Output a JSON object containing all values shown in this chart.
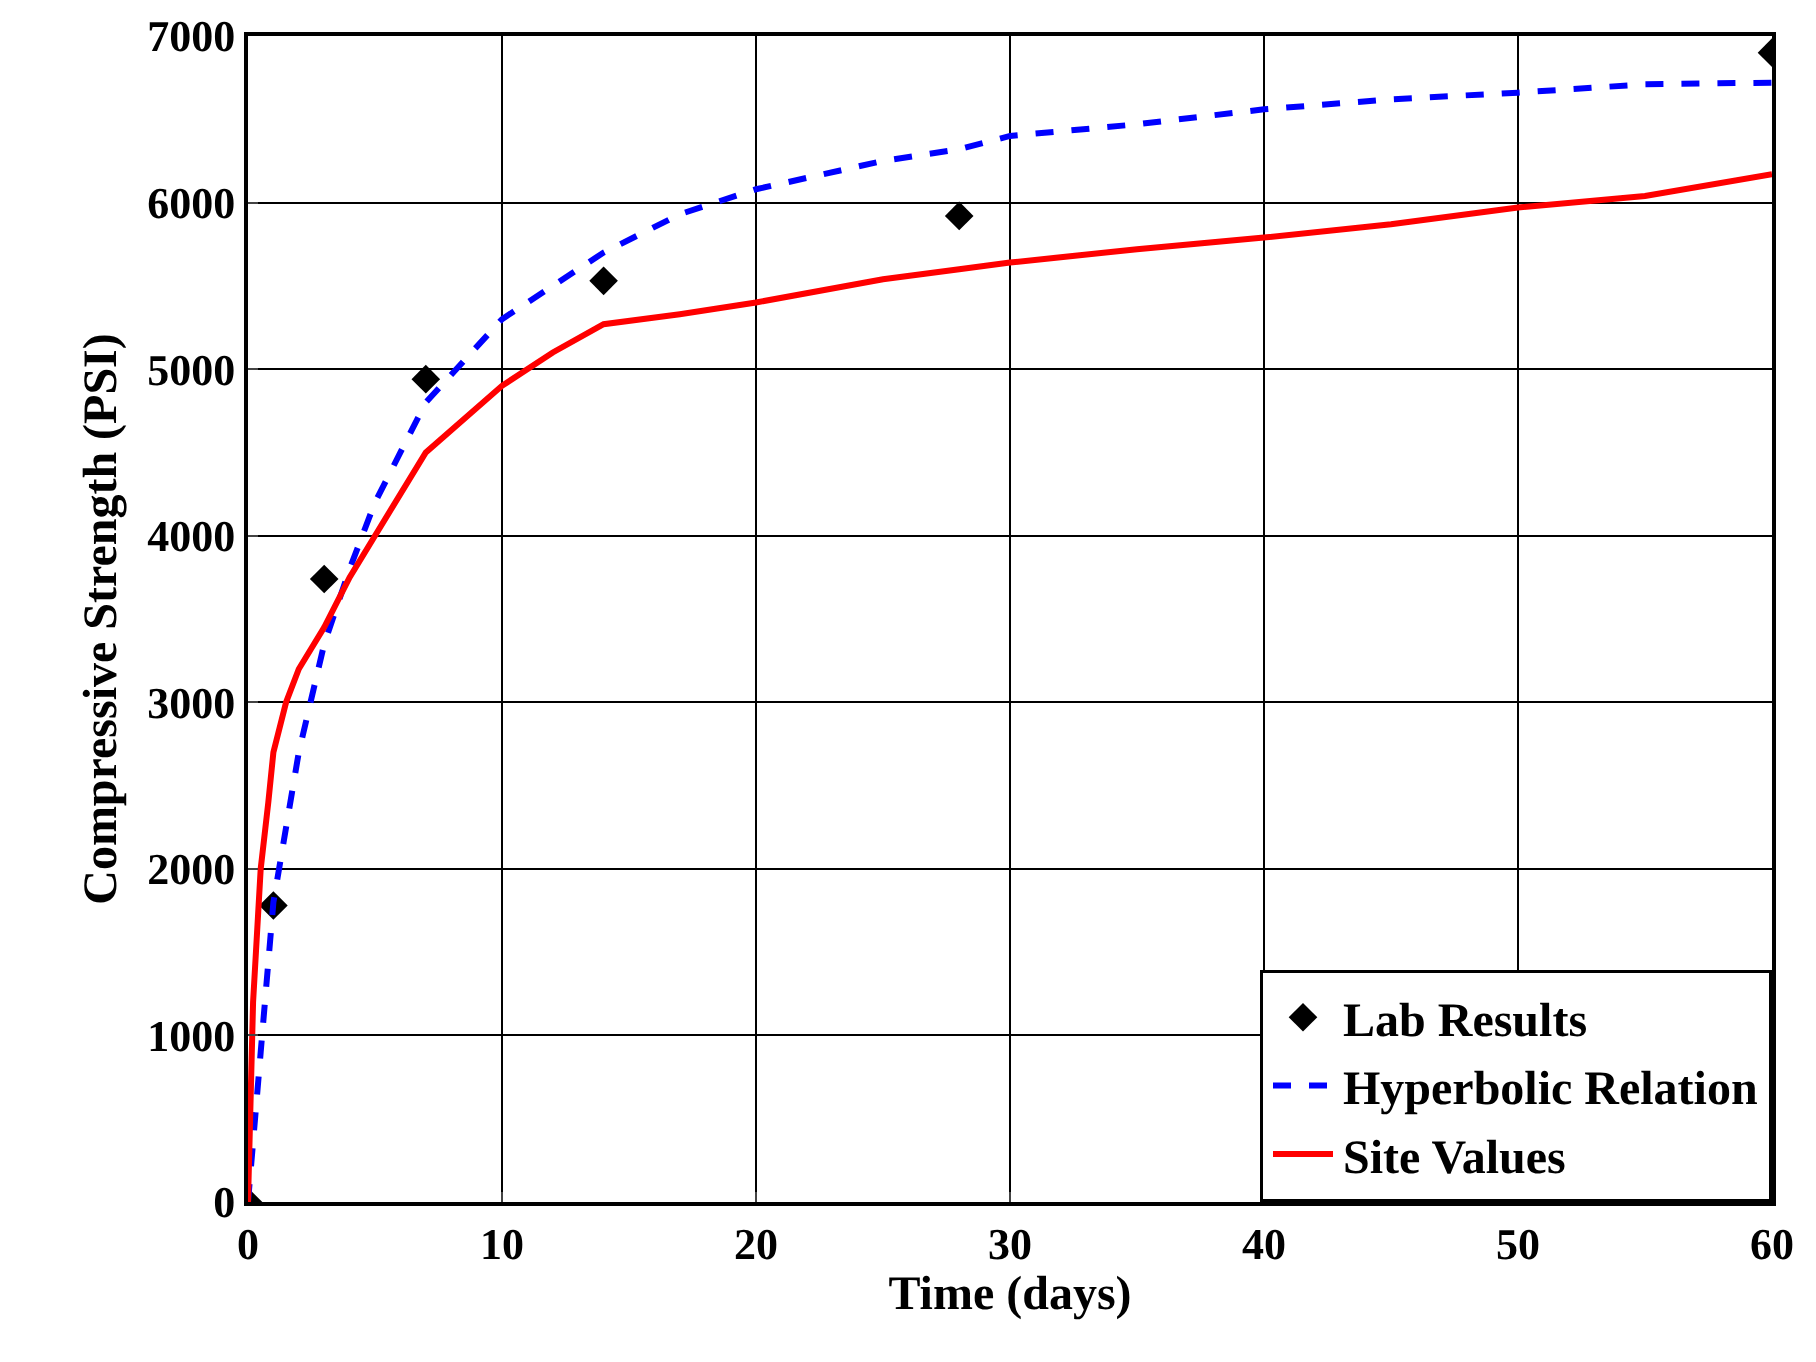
{
  "chart_data": {
    "type": "line",
    "xlabel": "Time (days)",
    "ylabel": "Compressive Strength (PSI)",
    "xlim": [
      0,
      60
    ],
    "xticks": [
      0,
      10,
      20,
      30,
      40,
      50,
      60
    ],
    "ylim": [
      0,
      7000
    ],
    "yticks": [
      0,
      1000,
      2000,
      3000,
      4000,
      5000,
      6000,
      7000
    ],
    "grid": true,
    "legend": "bottom right",
    "series": [
      {
        "name": "Lab Results",
        "type": "scatter",
        "marker": "diamond",
        "color": "#000000",
        "x": [
          0,
          1,
          3,
          7,
          14,
          28,
          60
        ],
        "values": [
          0,
          1780,
          3740,
          4940,
          5530,
          5920,
          6900
        ]
      },
      {
        "name": "Hyperbolic Relation",
        "type": "line",
        "line_style": "dashed",
        "color": "#0000ff",
        "x": [
          0,
          0.5,
          1,
          2,
          3,
          4,
          5,
          7,
          10,
          14,
          17,
          20,
          25,
          28,
          30,
          35,
          40,
          45,
          50,
          55,
          60
        ],
        "values": [
          0,
          900,
          1800,
          2700,
          3350,
          3800,
          4200,
          4800,
          5300,
          5700,
          5930,
          6080,
          6250,
          6320,
          6400,
          6470,
          6560,
          6620,
          6660,
          6710,
          6720
        ]
      },
      {
        "name": "Site Values",
        "type": "line",
        "line_style": "solid",
        "color": "#ff0000",
        "x": [
          0,
          0.2,
          0.5,
          0.8,
          1,
          1.5,
          2,
          3,
          4,
          5,
          7,
          10,
          12,
          14,
          17,
          20,
          25,
          28,
          30,
          35,
          40,
          45,
          50,
          55,
          60
        ],
        "values": [
          0,
          1200,
          2000,
          2400,
          2700,
          3000,
          3200,
          3450,
          3750,
          4000,
          4500,
          4900,
          5100,
          5270,
          5330,
          5400,
          5540,
          5600,
          5640,
          5720,
          5790,
          5870,
          5970,
          6040,
          6170
        ]
      }
    ]
  }
}
